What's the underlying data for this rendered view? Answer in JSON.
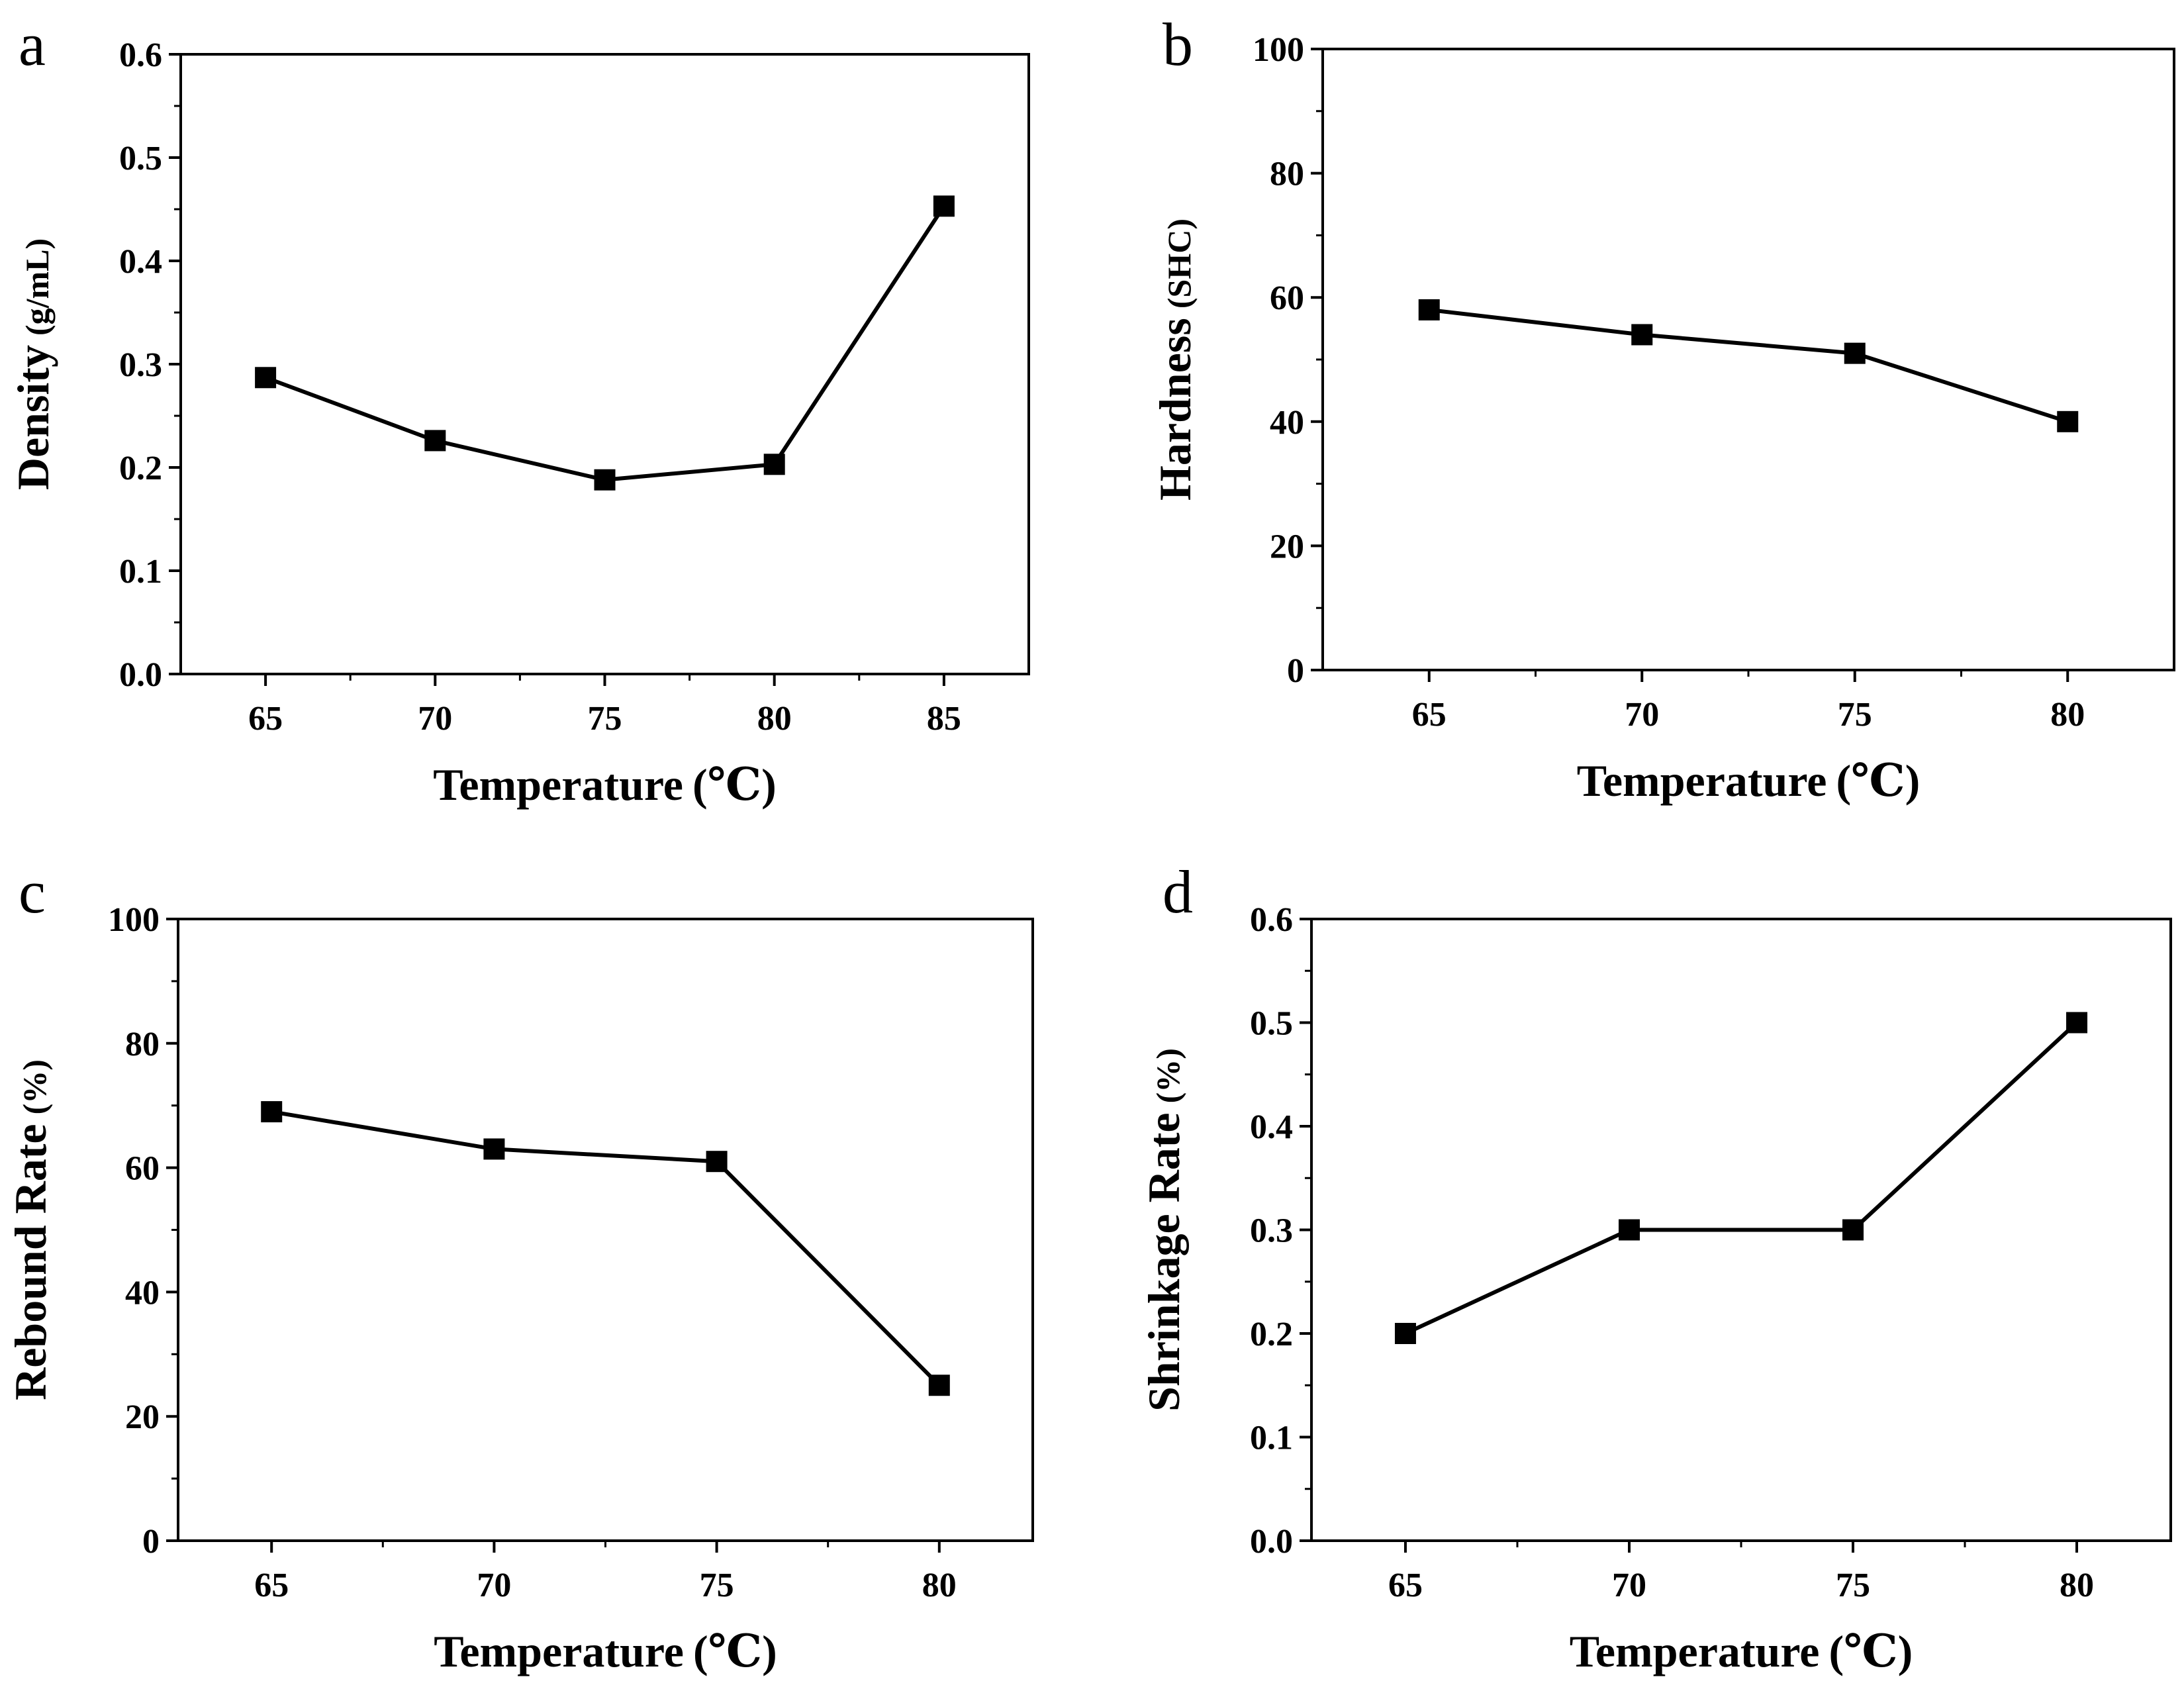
{
  "chart_data": [
    {
      "panel": "a",
      "type": "line",
      "x": [
        65,
        70,
        75,
        80,
        85
      ],
      "values": [
        0.287,
        0.226,
        0.188,
        0.203,
        0.453
      ],
      "xlabel": "Temperature",
      "xunit": "(℃)",
      "ylabel": "Density",
      "yunit": "(g/mL)",
      "xlim": [
        62.5,
        87.5
      ],
      "ylim": [
        0,
        0.6
      ],
      "xticks": [
        "65",
        "70",
        "75",
        "80",
        "85"
      ],
      "yticks": [
        "0.0",
        "0.1",
        "0.2",
        "0.3",
        "0.4",
        "0.5",
        "0.6"
      ],
      "marker": "square",
      "color": "#000000"
    },
    {
      "panel": "b",
      "type": "line",
      "x": [
        65,
        70,
        75,
        80
      ],
      "values": [
        58,
        54,
        51,
        40
      ],
      "xlabel": "Temperature",
      "xunit": "(℃)",
      "ylabel": "Hardness",
      "yunit": "(SHC)",
      "xlim": [
        62.5,
        82.5
      ],
      "ylim": [
        0,
        100
      ],
      "xticks": [
        "65",
        "70",
        "75",
        "80"
      ],
      "yticks": [
        "0",
        "20",
        "40",
        "60",
        "80",
        "100"
      ],
      "marker": "square",
      "color": "#000000"
    },
    {
      "panel": "c",
      "type": "line",
      "x": [
        65,
        70,
        75,
        80
      ],
      "values": [
        69,
        63,
        61,
        25
      ],
      "xlabel": "Temperature",
      "xunit": "(℃)",
      "ylabel": "Rebound Rate",
      "yunit": "(%)",
      "xlim": [
        62.9,
        82.1
      ],
      "ylim": [
        0,
        100
      ],
      "xticks": [
        "65",
        "70",
        "75",
        "80"
      ],
      "yticks": [
        "0",
        "20",
        "40",
        "60",
        "80",
        "100"
      ],
      "marker": "square",
      "color": "#000000"
    },
    {
      "panel": "d",
      "type": "line",
      "x": [
        65,
        70,
        75,
        80
      ],
      "values": [
        0.2,
        0.3,
        0.3,
        0.5
      ],
      "xlabel": "Temperature",
      "xunit": "(℃)",
      "ylabel": "Shrinkage Rate",
      "yunit": "(%)",
      "xlim": [
        62.9,
        82.1
      ],
      "ylim": [
        0,
        0.6
      ],
      "xticks": [
        "65",
        "70",
        "75",
        "80"
      ],
      "yticks": [
        "0.0",
        "0.1",
        "0.2",
        "0.3",
        "0.4",
        "0.5",
        "0.6"
      ],
      "marker": "square",
      "color": "#000000"
    }
  ]
}
